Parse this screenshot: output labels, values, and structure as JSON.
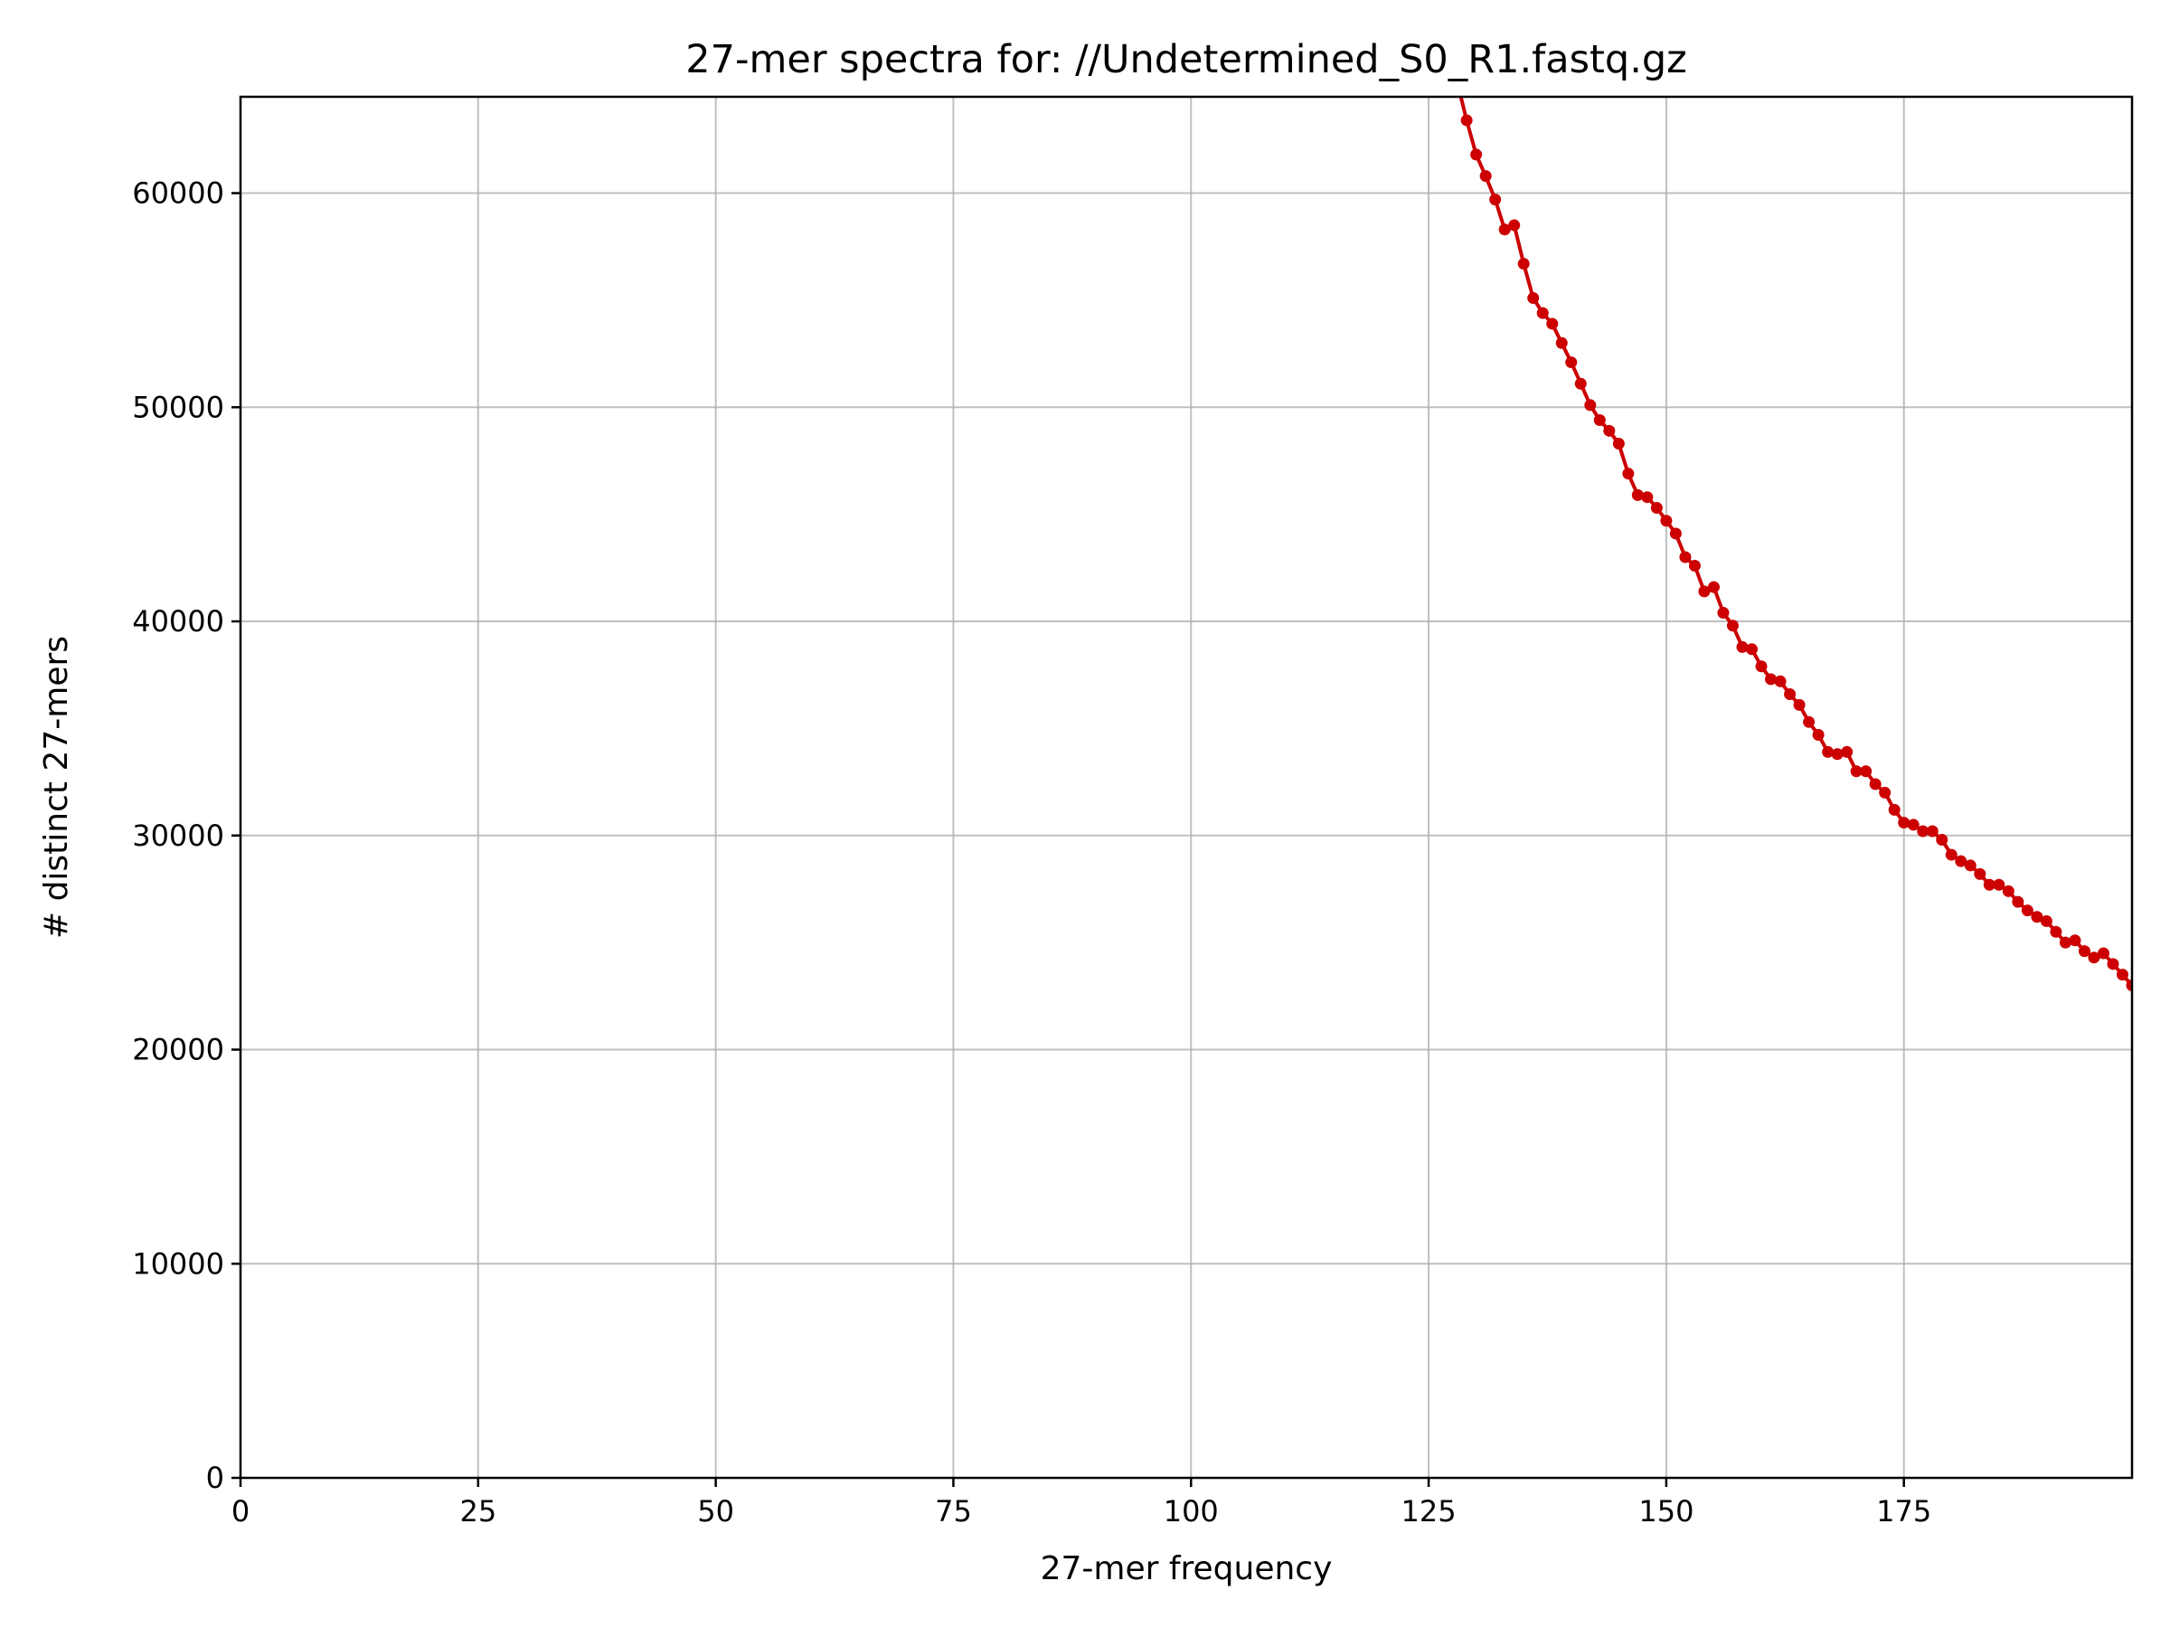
{
  "chart_data": {
    "type": "line",
    "title": "27-mer spectra for: //Undetermined_S0_R1.fastq.gz",
    "xlabel": "27-mer frequency",
    "ylabel": "# distinct 27-mers",
    "xlim": [
      0,
      199
    ],
    "ylim": [
      0,
      64500
    ],
    "x_ticks": [
      0,
      25,
      50,
      75,
      100,
      125,
      150,
      175
    ],
    "y_ticks": [
      0,
      10000,
      20000,
      30000,
      40000,
      50000,
      60000
    ],
    "grid": true,
    "series_color": "#cc0000",
    "series": [
      {
        "x": [
          128,
          129,
          130,
          131,
          132,
          133,
          134,
          135,
          136,
          137,
          138,
          139,
          140,
          141,
          142,
          143,
          144,
          145,
          146,
          147,
          148,
          149,
          150,
          151,
          152,
          153,
          154,
          155,
          156,
          157,
          158,
          159,
          160,
          161,
          162,
          163,
          164,
          165,
          166,
          167,
          168,
          169,
          170,
          171,
          172,
          173,
          174,
          175,
          176,
          177,
          178,
          179,
          180,
          181,
          182,
          183,
          184,
          185,
          186,
          187,
          188,
          189,
          190,
          191,
          192,
          193,
          194,
          195,
          196,
          197,
          198,
          199
        ],
        "y": [
          65200,
          63400,
          61800,
          60800,
          59700,
          58300,
          58500,
          56700,
          55100,
          54400,
          53900,
          53000,
          52100,
          51100,
          50100,
          49400,
          48900,
          48300,
          46900,
          45900,
          45800,
          45300,
          44700,
          44100,
          43000,
          42600,
          41400,
          41600,
          40400,
          39800,
          38800,
          38700,
          37900,
          37300,
          37200,
          36600,
          36100,
          35300,
          34700,
          33900,
          33800,
          33900,
          33000,
          33000,
          32400,
          32000,
          31200,
          30600,
          30500,
          30200,
          30200,
          29800,
          29100,
          28800,
          28600,
          28200,
          27700,
          27700,
          27400,
          26900,
          26500,
          26200,
          26000,
          25500,
          25000,
          25100,
          24600,
          24300,
          24500,
          24000,
          23500,
          23000
        ]
      }
    ]
  }
}
